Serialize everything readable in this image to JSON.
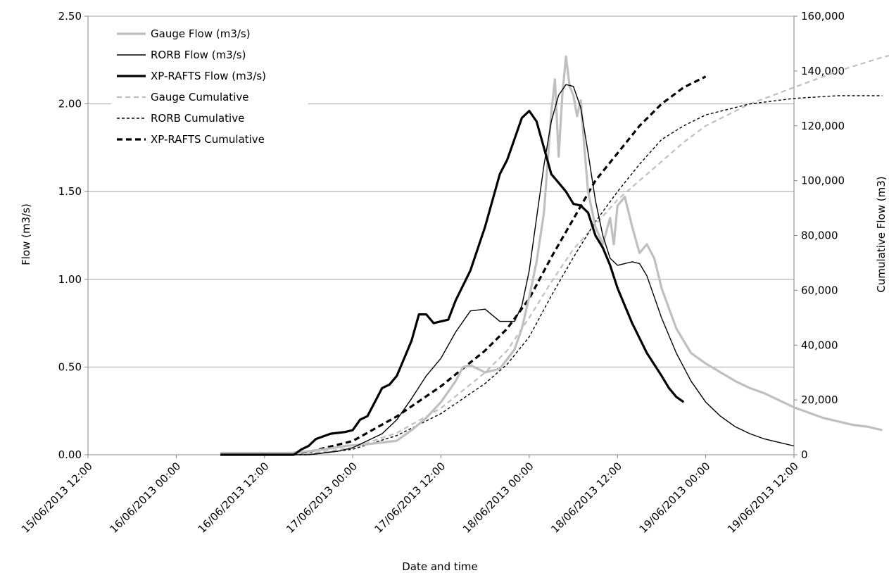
{
  "chart_data": {
    "type": "line",
    "xlabel": "Date and time",
    "ylabel": "Flow (m3/s)",
    "y2label": "Cumulative Flow (m3)",
    "x_ticks": [
      "15/06/2013 12:00",
      "16/06/2013 00:00",
      "16/06/2013 12:00",
      "17/06/2013 00:00",
      "17/06/2013 12:00",
      "18/06/2013 00:00",
      "18/06/2013 12:00",
      "19/06/2013 00:00",
      "19/06/2013 12:00"
    ],
    "x_range": [
      "15/06/2013 12:00",
      "19/06/2013 12:00"
    ],
    "y_ticks": [
      "0.00",
      "0.50",
      "1.00",
      "1.50",
      "2.00",
      "2.50"
    ],
    "ylim": [
      0,
      2.5
    ],
    "y2_ticks": [
      "0",
      "20,000",
      "40,000",
      "60,000",
      "80,000",
      "100,000",
      "120,000",
      "140,000",
      "160,000"
    ],
    "y2lim": [
      0,
      160000
    ],
    "grid": "horizontal",
    "legend_position": "top-left",
    "series": [
      {
        "name": "Gauge Flow (m3/s)",
        "axis": "left",
        "color": "#bfbfbf",
        "dash": "solid",
        "weight": "thick",
        "points": [
          [
            "16/06/2013 06:00",
            0.01
          ],
          [
            "16/06/2013 12:00",
            0.01
          ],
          [
            "16/06/2013 16:00",
            0.01
          ],
          [
            "16/06/2013 20:00",
            0.03
          ],
          [
            "16/06/2013 23:00",
            0.05
          ],
          [
            "17/06/2013 02:00",
            0.06
          ],
          [
            "17/06/2013 04:00",
            0.07
          ],
          [
            "17/06/2013 06:00",
            0.08
          ],
          [
            "17/06/2013 08:00",
            0.14
          ],
          [
            "17/06/2013 10:00",
            0.21
          ],
          [
            "17/06/2013 12:00",
            0.3
          ],
          [
            "17/06/2013 14:00",
            0.42
          ],
          [
            "17/06/2013 15:00",
            0.5
          ],
          [
            "17/06/2013 16:00",
            0.51
          ],
          [
            "17/06/2013 18:00",
            0.47
          ],
          [
            "17/06/2013 20:00",
            0.49
          ],
          [
            "17/06/2013 22:00",
            0.6
          ],
          [
            "17/06/2013 23:00",
            0.72
          ],
          [
            "18/06/2013 00:00",
            0.9
          ],
          [
            "18/06/2013 01:00",
            1.1
          ],
          [
            "18/06/2013 02:00",
            1.38
          ],
          [
            "18/06/2013 03:00",
            1.95
          ],
          [
            "18/06/2013 03:30",
            2.14
          ],
          [
            "18/06/2013 04:00",
            1.7
          ],
          [
            "18/06/2013 04:30",
            2.05
          ],
          [
            "18/06/2013 05:00",
            2.27
          ],
          [
            "18/06/2013 05:30",
            2.1
          ],
          [
            "18/06/2013 06:00",
            2.05
          ],
          [
            "18/06/2013 06:30",
            1.93
          ],
          [
            "18/06/2013 07:00",
            2.02
          ],
          [
            "18/06/2013 07:30",
            1.75
          ],
          [
            "18/06/2013 08:00",
            1.5
          ],
          [
            "18/06/2013 09:00",
            1.3
          ],
          [
            "18/06/2013 10:00",
            1.2
          ],
          [
            "18/06/2013 11:00",
            1.35
          ],
          [
            "18/06/2013 11:30",
            1.2
          ],
          [
            "18/06/2013 12:00",
            1.42
          ],
          [
            "18/06/2013 13:00",
            1.47
          ],
          [
            "18/06/2013 14:00",
            1.3
          ],
          [
            "18/06/2013 15:00",
            1.15
          ],
          [
            "18/06/2013 16:00",
            1.2
          ],
          [
            "18/06/2013 17:00",
            1.12
          ],
          [
            "18/06/2013 18:00",
            0.95
          ],
          [
            "18/06/2013 20:00",
            0.72
          ],
          [
            "18/06/2013 22:00",
            0.58
          ],
          [
            "19/06/2013 00:00",
            0.52
          ],
          [
            "19/06/2013 02:00",
            0.47
          ],
          [
            "19/06/2013 04:00",
            0.42
          ],
          [
            "19/06/2013 06:00",
            0.38
          ],
          [
            "19/06/2013 08:00",
            0.35
          ],
          [
            "19/06/2013 10:00",
            0.31
          ],
          [
            "19/06/2013 12:00",
            0.27
          ],
          [
            "19/06/2013 14:00",
            0.24
          ],
          [
            "19/06/2013 16:00",
            0.21
          ],
          [
            "19/06/2013 18:00",
            0.19
          ],
          [
            "19/06/2013 20:00",
            0.17
          ],
          [
            "19/06/2013 22:00",
            0.16
          ],
          [
            "20/06/2013 00:00",
            0.14
          ]
        ]
      },
      {
        "name": "RORB Flow (m3/s)",
        "axis": "left",
        "color": "#000000",
        "dash": "solid",
        "weight": "thin",
        "points": [
          [
            "16/06/2013 06:00",
            0.0
          ],
          [
            "16/06/2013 14:00",
            0.0
          ],
          [
            "16/06/2013 18:00",
            0.0
          ],
          [
            "16/06/2013 22:00",
            0.02
          ],
          [
            "17/06/2013 00:00",
            0.04
          ],
          [
            "17/06/2013 02:00",
            0.08
          ],
          [
            "17/06/2013 04:00",
            0.12
          ],
          [
            "17/06/2013 06:00",
            0.2
          ],
          [
            "17/06/2013 08:00",
            0.32
          ],
          [
            "17/06/2013 10:00",
            0.45
          ],
          [
            "17/06/2013 12:00",
            0.55
          ],
          [
            "17/06/2013 14:00",
            0.7
          ],
          [
            "17/06/2013 16:00",
            0.82
          ],
          [
            "17/06/2013 18:00",
            0.83
          ],
          [
            "17/06/2013 20:00",
            0.76
          ],
          [
            "17/06/2013 22:00",
            0.76
          ],
          [
            "17/06/2013 23:00",
            0.85
          ],
          [
            "18/06/2013 00:00",
            1.05
          ],
          [
            "18/06/2013 01:00",
            1.35
          ],
          [
            "18/06/2013 02:00",
            1.65
          ],
          [
            "18/06/2013 03:00",
            1.9
          ],
          [
            "18/06/2013 04:00",
            2.05
          ],
          [
            "18/06/2013 05:00",
            2.11
          ],
          [
            "18/06/2013 06:00",
            2.1
          ],
          [
            "18/06/2013 07:00",
            1.98
          ],
          [
            "18/06/2013 08:00",
            1.72
          ],
          [
            "18/06/2013 09:00",
            1.45
          ],
          [
            "18/06/2013 10:00",
            1.25
          ],
          [
            "18/06/2013 11:00",
            1.12
          ],
          [
            "18/06/2013 12:00",
            1.08
          ],
          [
            "18/06/2013 14:00",
            1.1
          ],
          [
            "18/06/2013 15:00",
            1.09
          ],
          [
            "18/06/2013 16:00",
            1.02
          ],
          [
            "18/06/2013 17:00",
            0.9
          ],
          [
            "18/06/2013 18:00",
            0.78
          ],
          [
            "18/06/2013 20:00",
            0.58
          ],
          [
            "18/06/2013 22:00",
            0.42
          ],
          [
            "19/06/2013 00:00",
            0.3
          ],
          [
            "19/06/2013 02:00",
            0.22
          ],
          [
            "19/06/2013 04:00",
            0.16
          ],
          [
            "19/06/2013 06:00",
            0.12
          ],
          [
            "19/06/2013 08:00",
            0.09
          ],
          [
            "19/06/2013 10:00",
            0.07
          ],
          [
            "19/06/2013 12:00",
            0.05
          ]
        ]
      },
      {
        "name": "XP-RAFTS Flow (m3/s)",
        "axis": "left",
        "color": "#000000",
        "dash": "solid",
        "weight": "bold",
        "points": [
          [
            "16/06/2013 06:00",
            0.0
          ],
          [
            "16/06/2013 14:00",
            0.0
          ],
          [
            "16/06/2013 16:00",
            0.0
          ],
          [
            "16/06/2013 17:00",
            0.03
          ],
          [
            "16/06/2013 18:00",
            0.05
          ],
          [
            "16/06/2013 19:00",
            0.09
          ],
          [
            "16/06/2013 21:00",
            0.12
          ],
          [
            "16/06/2013 23:00",
            0.13
          ],
          [
            "17/06/2013 00:00",
            0.14
          ],
          [
            "17/06/2013 01:00",
            0.2
          ],
          [
            "17/06/2013 02:00",
            0.22
          ],
          [
            "17/06/2013 03:00",
            0.3
          ],
          [
            "17/06/2013 04:00",
            0.38
          ],
          [
            "17/06/2013 05:00",
            0.4
          ],
          [
            "17/06/2013 06:00",
            0.45
          ],
          [
            "17/06/2013 07:00",
            0.55
          ],
          [
            "17/06/2013 08:00",
            0.65
          ],
          [
            "17/06/2013 09:00",
            0.8
          ],
          [
            "17/06/2013 10:00",
            0.8
          ],
          [
            "17/06/2013 11:00",
            0.75
          ],
          [
            "17/06/2013 12:00",
            0.76
          ],
          [
            "17/06/2013 13:00",
            0.77
          ],
          [
            "17/06/2013 14:00",
            0.88
          ],
          [
            "17/06/2013 16:00",
            1.05
          ],
          [
            "17/06/2013 18:00",
            1.3
          ],
          [
            "17/06/2013 20:00",
            1.6
          ],
          [
            "17/06/2013 21:00",
            1.68
          ],
          [
            "17/06/2013 22:00",
            1.8
          ],
          [
            "17/06/2013 23:00",
            1.92
          ],
          [
            "18/06/2013 00:00",
            1.96
          ],
          [
            "18/06/2013 01:00",
            1.9
          ],
          [
            "18/06/2013 02:00",
            1.75
          ],
          [
            "18/06/2013 03:00",
            1.6
          ],
          [
            "18/06/2013 04:00",
            1.55
          ],
          [
            "18/06/2013 05:00",
            1.5
          ],
          [
            "18/06/2013 06:00",
            1.43
          ],
          [
            "18/06/2013 07:00",
            1.42
          ],
          [
            "18/06/2013 08:00",
            1.38
          ],
          [
            "18/06/2013 09:00",
            1.25
          ],
          [
            "18/06/2013 10:00",
            1.18
          ],
          [
            "18/06/2013 11:00",
            1.08
          ],
          [
            "18/06/2013 12:00",
            0.95
          ],
          [
            "18/06/2013 14:00",
            0.75
          ],
          [
            "18/06/2013 16:00",
            0.58
          ],
          [
            "18/06/2013 18:00",
            0.45
          ],
          [
            "18/06/2013 19:00",
            0.38
          ],
          [
            "18/06/2013 20:00",
            0.33
          ],
          [
            "18/06/2013 21:00",
            0.3
          ]
        ]
      },
      {
        "name": "Gauge Cumulative",
        "axis": "right",
        "color": "#bfbfbf",
        "dash": "dashed",
        "weight": "medium",
        "points": [
          [
            "16/06/2013 12:00",
            0
          ],
          [
            "16/06/2013 18:00",
            500
          ],
          [
            "17/06/2013 00:00",
            2500
          ],
          [
            "17/06/2013 06:00",
            8000
          ],
          [
            "17/06/2013 12:00",
            17000
          ],
          [
            "17/06/2013 18:00",
            30000
          ],
          [
            "17/06/2013 21:00",
            38000
          ],
          [
            "18/06/2013 00:00",
            50000
          ],
          [
            "18/06/2013 03:00",
            63000
          ],
          [
            "18/06/2013 06:00",
            75000
          ],
          [
            "18/06/2013 09:00",
            84000
          ],
          [
            "18/06/2013 12:00",
            93000
          ],
          [
            "18/06/2013 15:00",
            100000
          ],
          [
            "18/06/2013 18:00",
            107000
          ],
          [
            "18/06/2013 21:00",
            114000
          ],
          [
            "19/06/2013 00:00",
            120000
          ],
          [
            "19/06/2013 03:00",
            124000
          ],
          [
            "19/06/2013 06:00",
            128000
          ],
          [
            "19/06/2013 12:00",
            134000
          ],
          [
            "19/06/2013 18:00",
            140000
          ],
          [
            "20/06/2013 00:00",
            145000
          ],
          [
            "20/06/2013 06:00",
            149000
          ]
        ]
      },
      {
        "name": "RORB Cumulative",
        "axis": "right",
        "color": "#000000",
        "dash": "dashed",
        "weight": "thin",
        "points": [
          [
            "16/06/2013 12:00",
            0
          ],
          [
            "16/06/2013 18:00",
            0
          ],
          [
            "17/06/2013 00:00",
            2000
          ],
          [
            "17/06/2013 06:00",
            7000
          ],
          [
            "17/06/2013 12:00",
            15000
          ],
          [
            "17/06/2013 18:00",
            26000
          ],
          [
            "17/06/2013 21:00",
            33000
          ],
          [
            "18/06/2013 00:00",
            43000
          ],
          [
            "18/06/2013 03:00",
            58000
          ],
          [
            "18/06/2013 06:00",
            72000
          ],
          [
            "18/06/2013 09:00",
            85000
          ],
          [
            "18/06/2013 12:00",
            96000
          ],
          [
            "18/06/2013 15:00",
            106000
          ],
          [
            "18/06/2013 18:00",
            115000
          ],
          [
            "18/06/2013 21:00",
            120000
          ],
          [
            "19/06/2013 00:00",
            124000
          ],
          [
            "19/06/2013 06:00",
            128000
          ],
          [
            "19/06/2013 12:00",
            130000
          ],
          [
            "19/06/2013 18:00",
            131000
          ],
          [
            "20/06/2013 00:00",
            131000
          ]
        ]
      },
      {
        "name": "XP-RAFTS Cumulative",
        "axis": "right",
        "color": "#000000",
        "dash": "dashed",
        "weight": "bold",
        "points": [
          [
            "16/06/2013 12:00",
            0
          ],
          [
            "16/06/2013 18:00",
            1000
          ],
          [
            "17/06/2013 00:00",
            5000
          ],
          [
            "17/06/2013 06:00",
            14000
          ],
          [
            "17/06/2013 12:00",
            25000
          ],
          [
            "17/06/2013 18:00",
            38000
          ],
          [
            "17/06/2013 21:00",
            46000
          ],
          [
            "18/06/2013 00:00",
            57000
          ],
          [
            "18/06/2013 03:00",
            72000
          ],
          [
            "18/06/2013 06:00",
            86000
          ],
          [
            "18/06/2013 09:00",
            100000
          ],
          [
            "18/06/2013 12:00",
            110000
          ],
          [
            "18/06/2013 15:00",
            120000
          ],
          [
            "18/06/2013 18:00",
            128000
          ],
          [
            "18/06/2013 21:00",
            134000
          ],
          [
            "19/06/2013 00:00",
            138000
          ]
        ]
      }
    ]
  }
}
